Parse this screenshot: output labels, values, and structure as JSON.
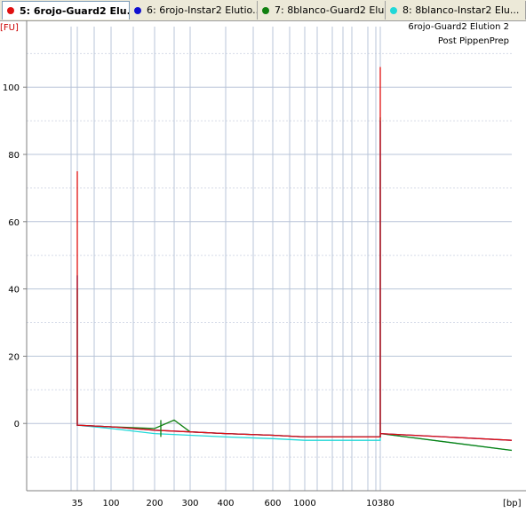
{
  "tabs": [
    {
      "label": "5: 6rojo-Guard2 Elu...",
      "color": "#e01010",
      "active": true
    },
    {
      "label": "6: 6rojo-Instar2 Elutio...",
      "color": "#1010d0",
      "active": false
    },
    {
      "label": "7: 8blanco-Guard2 Elu...",
      "color": "#108010",
      "active": false
    },
    {
      "label": "8: 8blanco-Instar2 Elu...",
      "color": "#20d8d8",
      "active": false
    }
  ],
  "chart_data": {
    "type": "line",
    "title": "6rojo-Guard2 Elution 2",
    "subtitle": "Post PippenPrep",
    "ylabel": "[FU]",
    "xlabel": "[bp]",
    "ylim": [
      -20,
      118
    ],
    "yticks": [
      0,
      20,
      40,
      60,
      80,
      100
    ],
    "xtick_labels": [
      "35",
      "100",
      "200",
      "300",
      "400",
      "600",
      "1000",
      "10380"
    ],
    "grid": true,
    "x_axis": "electropherogram size scale (bp), non-linear ladder spacing",
    "series": [
      {
        "name": "5: 6rojo-Guard2",
        "color": "#e01010",
        "points": [
          [
            "35",
            0
          ],
          [
            "35",
            75
          ],
          [
            "35",
            -0.5
          ],
          [
            "100",
            -1
          ],
          [
            "200",
            -2
          ],
          [
            "300",
            -2.5
          ],
          [
            "400",
            -3
          ],
          [
            "600",
            -3.5
          ],
          [
            "1000",
            -4
          ],
          [
            "10380",
            -4
          ],
          [
            "10380",
            106
          ],
          [
            "10380",
            -3
          ],
          [
            "10380+",
            -5
          ]
        ]
      },
      {
        "name": "6: 6rojo-Instar2",
        "color": "#1010d0",
        "points": [
          [
            "35",
            0
          ],
          [
            "35",
            44
          ],
          [
            "35",
            -0.5
          ],
          [
            "100",
            -1
          ],
          [
            "200",
            -2
          ],
          [
            "300",
            -2.5
          ],
          [
            "400",
            -3
          ],
          [
            "600",
            -3.5
          ],
          [
            "1000",
            -4
          ],
          [
            "10380",
            -4
          ],
          [
            "10380",
            90
          ],
          [
            "10380",
            -3
          ],
          [
            "10380+",
            -5
          ]
        ]
      },
      {
        "name": "7: 8blanco-Guard2",
        "color": "#108010",
        "points": [
          [
            "35",
            0
          ],
          [
            "35",
            40
          ],
          [
            "35",
            -0.5
          ],
          [
            "100",
            -1
          ],
          [
            "200",
            -1.5
          ],
          [
            "250",
            1
          ],
          [
            "300",
            -2.5
          ],
          [
            "400",
            -3
          ],
          [
            "600",
            -3.5
          ],
          [
            "1000",
            -4
          ],
          [
            "10380",
            -4
          ],
          [
            "10380",
            91
          ],
          [
            "10380",
            -3
          ],
          [
            "10380+",
            -8
          ]
        ]
      },
      {
        "name": "8: 8blanco-Instar2",
        "color": "#20d8d8",
        "points": [
          [
            "35",
            0
          ],
          [
            "35",
            44
          ],
          [
            "35",
            -0.5
          ],
          [
            "100",
            -1.5
          ],
          [
            "200",
            -3
          ],
          [
            "300",
            -3.5
          ],
          [
            "400",
            -4
          ],
          [
            "600",
            -4.5
          ],
          [
            "1000",
            -5
          ],
          [
            "10380",
            -5
          ],
          [
            "10380",
            78
          ],
          [
            "10380",
            -3
          ],
          [
            "10380+",
            -8
          ]
        ]
      }
    ]
  }
}
